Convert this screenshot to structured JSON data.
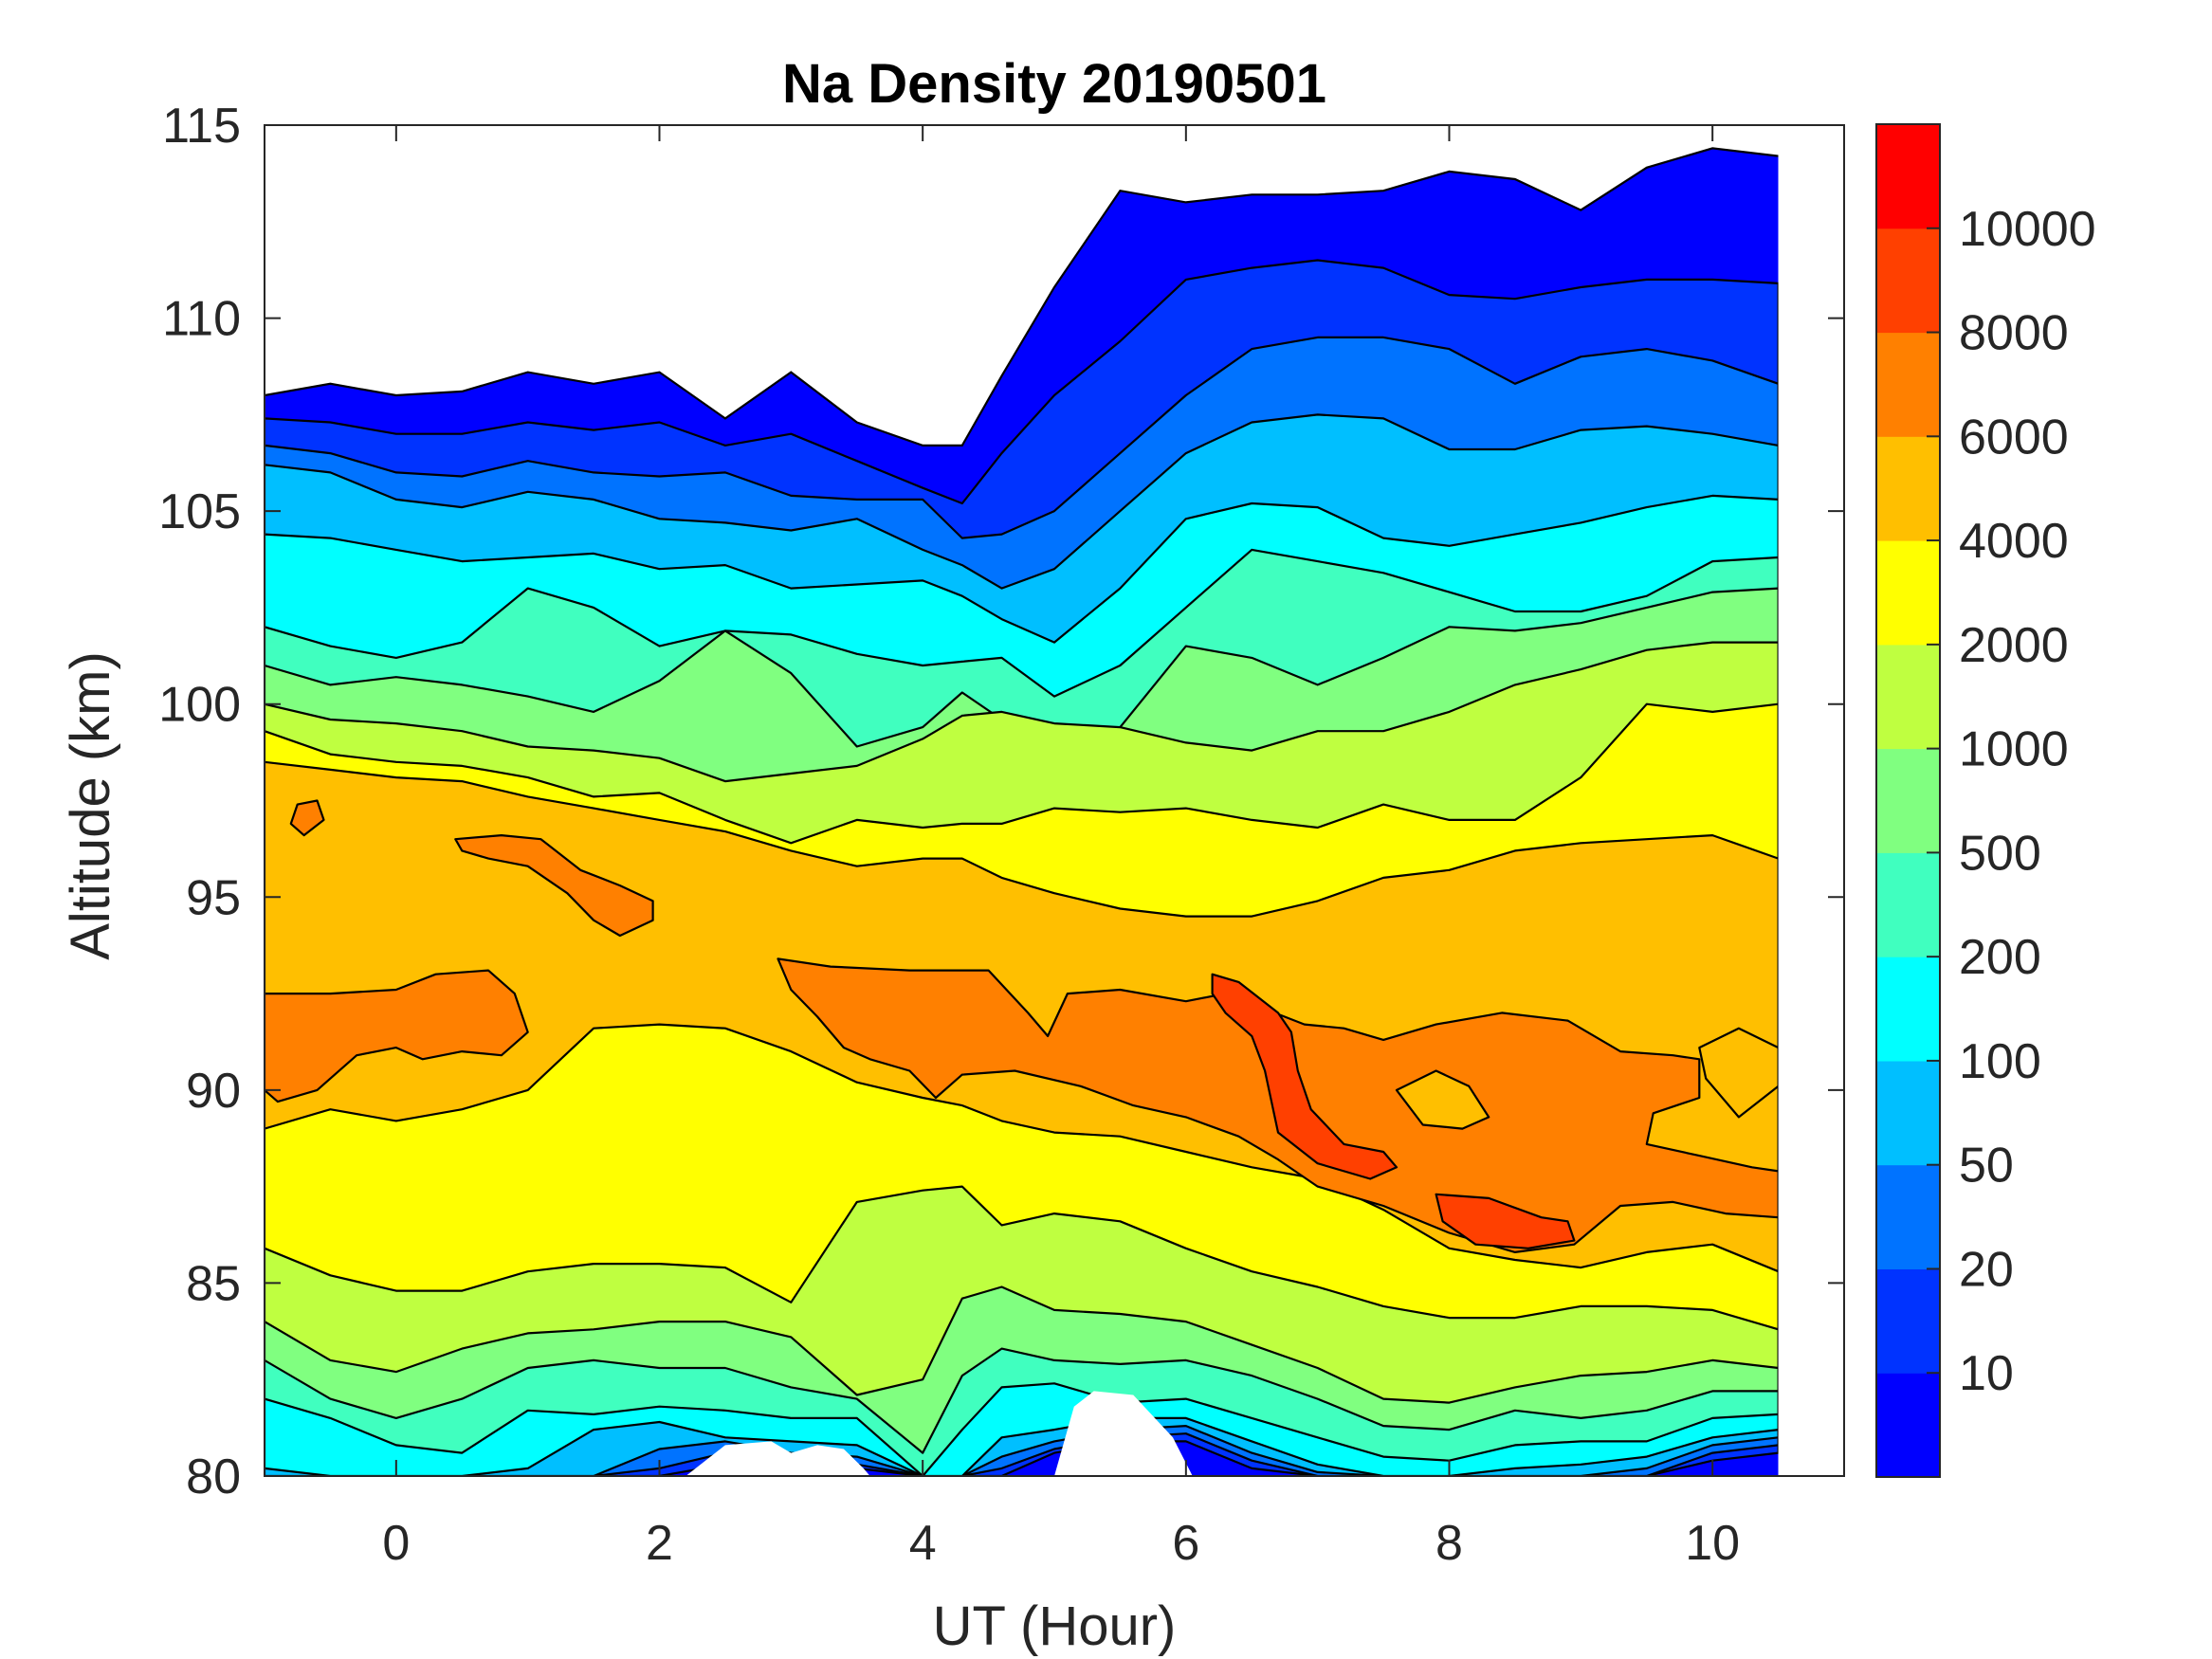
{
  "chart_data": {
    "type": "contourf",
    "title": "Na Density 20190501",
    "xlabel": "UT (Hour)",
    "ylabel": "Altitude (km)",
    "xlim": [
      -1,
      11
    ],
    "ylim": [
      80,
      115
    ],
    "xticks": [
      0,
      2,
      4,
      6,
      8,
      10
    ],
    "xtick_labels": [
      "0",
      "2",
      "4",
      "6",
      "8",
      "10"
    ],
    "yticks": [
      80,
      85,
      90,
      95,
      100,
      105,
      110,
      115
    ],
    "ytick_labels": [
      "80",
      "85",
      "90",
      "95",
      "100",
      "105",
      "110",
      "115"
    ],
    "grid": false,
    "colorbar": {
      "position": "right",
      "levels": [
        10,
        20,
        50,
        100,
        200,
        500,
        1000,
        2000,
        4000,
        6000,
        8000,
        10000
      ],
      "tick_labels": [
        "10",
        "20",
        "50",
        "100",
        "200",
        "500",
        "1000",
        "2000",
        "4000",
        "6000",
        "8000",
        "10000"
      ],
      "colors": [
        "#0000ff",
        "#0033ff",
        "#0073ff",
        "#00bfff",
        "#00ffff",
        "#40ffbf",
        "#80ff80",
        "#bfff40",
        "#ffff00",
        "#ffbf00",
        "#ff8000",
        "#ff4000",
        "#ff0000"
      ]
    },
    "ut": [
      -1,
      -0.5,
      0,
      0.5,
      1,
      1.5,
      2,
      2.5,
      3,
      3.5,
      4,
      4.3,
      4.6,
      5,
      5.5,
      6,
      6.5,
      7,
      7.5,
      8,
      8.5,
      9,
      9.5,
      10,
      10.5
    ],
    "bands": [
      {
        "level": 0,
        "top": [
          108.0,
          108.3,
          108.0,
          108.1,
          108.6,
          108.3,
          108.6,
          107.4,
          108.6,
          107.3,
          106.7,
          106.7,
          108.5,
          110.8,
          113.3,
          113.0,
          113.2,
          113.2,
          113.3,
          113.8,
          113.6,
          112.8,
          113.9,
          114.4,
          114.2
        ],
        "bottom": [
          80,
          80,
          80,
          80,
          80,
          80,
          80,
          80,
          80,
          80,
          80,
          80,
          80,
          80,
          80,
          80,
          80,
          80,
          80,
          80,
          80,
          80,
          80,
          80,
          80
        ]
      },
      {
        "level": 10,
        "top": [
          107.4,
          107.3,
          107.0,
          107.0,
          107.3,
          107.1,
          107.3,
          106.7,
          107.0,
          106.3,
          105.6,
          105.2,
          106.5,
          108.0,
          109.4,
          111.0,
          111.3,
          111.5,
          111.3,
          110.6,
          110.5,
          110.8,
          111.0,
          111.0,
          110.9
        ],
        "bottom": [
          80,
          80,
          80,
          80,
          80,
          80,
          80,
          80.3,
          80.4,
          80.2,
          80,
          80,
          80,
          80.6,
          80.9,
          80.9,
          80.2,
          80,
          80,
          80,
          80,
          80,
          80,
          80.4,
          80.6
        ]
      },
      {
        "level": 20,
        "top": [
          106.7,
          106.5,
          106.0,
          105.9,
          106.3,
          106.0,
          105.9,
          106.0,
          105.4,
          105.3,
          105.3,
          104.3,
          104.4,
          105.0,
          106.5,
          108.0,
          109.2,
          109.5,
          109.5,
          109.2,
          108.3,
          109.0,
          109.2,
          108.9,
          108.3
        ],
        "bottom": [
          80,
          80,
          80,
          80,
          80,
          80,
          80.2,
          80.6,
          80.5,
          80.3,
          80,
          80,
          80.2,
          80.7,
          81.0,
          81.1,
          80.4,
          80,
          80,
          80,
          80,
          80,
          80,
          80.6,
          80.8
        ]
      },
      {
        "level": 50,
        "top": [
          106.2,
          106.0,
          105.3,
          105.1,
          105.5,
          105.3,
          104.8,
          104.7,
          104.5,
          104.8,
          104.0,
          103.6,
          103.0,
          103.5,
          105.0,
          106.5,
          107.3,
          107.5,
          107.4,
          106.6,
          106.6,
          107.1,
          107.2,
          107.0,
          106.7
        ],
        "bottom": [
          80,
          80,
          80,
          80,
          80,
          80,
          80.7,
          80.9,
          80.6,
          80.5,
          80,
          80,
          80.5,
          80.9,
          81.2,
          81.3,
          80.6,
          80.1,
          80,
          80,
          80,
          80,
          80.2,
          80.8,
          81.0
        ]
      },
      {
        "level": 100,
        "top": [
          104.4,
          104.3,
          104.0,
          103.7,
          103.8,
          103.9,
          103.5,
          103.6,
          103.0,
          103.1,
          103.2,
          102.8,
          102.2,
          101.6,
          103.0,
          104.8,
          105.2,
          105.1,
          104.3,
          104.1,
          104.4,
          104.7,
          105.1,
          105.4,
          105.3
        ],
        "bottom": [
          80.2,
          80,
          80,
          80,
          80.2,
          81.2,
          81.4,
          81.0,
          80.9,
          80.8,
          80,
          80,
          81.0,
          81.2,
          81.5,
          81.5,
          80.9,
          80.3,
          80,
          80,
          80.2,
          80.3,
          80.5,
          81.0,
          81.2
        ]
      },
      {
        "level": 200,
        "top": [
          102.0,
          101.5,
          101.2,
          101.6,
          103.0,
          102.5,
          101.5,
          101.9,
          101.8,
          101.3,
          101.0,
          101.1,
          101.2,
          100.2,
          101.0,
          102.5,
          104.0,
          103.7,
          103.4,
          102.9,
          102.4,
          102.4,
          102.8,
          103.7,
          103.8
        ],
        "bottom": [
          82.0,
          81.5,
          80.8,
          80.6,
          81.7,
          81.6,
          81.8,
          81.7,
          81.5,
          81.5,
          80.0,
          81.2,
          82.3,
          82.4,
          81.9,
          82.0,
          81.5,
          81.0,
          80.5,
          80.4,
          80.8,
          80.9,
          80.9,
          81.5,
          81.6
        ]
      },
      {
        "level": 500,
        "top": [
          101.0,
          100.5,
          100.7,
          100.5,
          100.2,
          99.8,
          100.6,
          101.9,
          100.8,
          98.9,
          99.4,
          100.3,
          99.6,
          99.4,
          99.4,
          101.5,
          101.2,
          100.5,
          101.2,
          102.0,
          101.9,
          102.1,
          102.5,
          102.9,
          103.0
        ],
        "bottom": [
          83.0,
          82.0,
          81.5,
          82.0,
          82.8,
          83.0,
          82.8,
          82.8,
          82.3,
          82.0,
          80.6,
          82.6,
          83.3,
          83.0,
          82.9,
          83.0,
          82.6,
          82.0,
          81.3,
          81.2,
          81.7,
          81.5,
          81.7,
          82.2,
          82.2
        ]
      },
      {
        "level": 1000,
        "top": [
          100.0,
          99.6,
          99.5,
          99.3,
          98.9,
          98.8,
          98.6,
          98.0,
          98.2,
          98.4,
          99.1,
          99.7,
          99.8,
          99.5,
          99.4,
          99.0,
          98.8,
          99.3,
          99.3,
          99.8,
          100.5,
          100.9,
          101.4,
          101.6,
          101.6
        ],
        "bottom": [
          84.0,
          83.0,
          82.7,
          83.3,
          83.7,
          83.8,
          84.0,
          84.0,
          83.6,
          82.1,
          82.5,
          84.6,
          84.9,
          84.3,
          84.2,
          84.0,
          83.4,
          82.8,
          82.0,
          81.9,
          82.3,
          82.6,
          82.7,
          83.0,
          82.8
        ]
      },
      {
        "level": 2000,
        "top": [
          99.3,
          98.7,
          98.5,
          98.4,
          98.1,
          97.6,
          97.7,
          97.0,
          96.4,
          97.0,
          96.8,
          96.9,
          96.9,
          97.3,
          97.2,
          97.3,
          97.0,
          96.8,
          97.4,
          97.0,
          97.0,
          98.1,
          100.0,
          99.8,
          100.0
        ],
        "bottom": [
          85.9,
          85.2,
          84.8,
          84.8,
          85.3,
          85.5,
          85.5,
          85.4,
          84.5,
          87.1,
          87.4,
          87.5,
          86.5,
          86.8,
          86.6,
          85.9,
          85.3,
          84.9,
          84.4,
          84.1,
          84.1,
          84.4,
          84.4,
          84.3,
          83.8
        ]
      },
      {
        "level": 4000,
        "top": [
          98.5,
          98.3,
          98.1,
          98.0,
          97.6,
          97.3,
          97.0,
          96.7,
          96.2,
          95.8,
          96.0,
          96.0,
          95.5,
          95.1,
          94.7,
          94.5,
          94.5,
          94.9,
          95.5,
          95.7,
          96.2,
          96.4,
          96.5,
          96.6,
          96.0
        ],
        "bottom": [
          89.0,
          89.5,
          89.2,
          89.5,
          90.0,
          91.6,
          91.7,
          91.6,
          91.0,
          90.2,
          89.8,
          89.6,
          89.2,
          88.9,
          88.8,
          88.4,
          88.0,
          87.7,
          86.9,
          85.9,
          85.6,
          85.4,
          85.8,
          86.0,
          85.3
        ]
      }
    ],
    "patches": [
      {
        "level": 6000,
        "points": [
          [
            -1,
            92.5
          ],
          [
            -0.5,
            92.5
          ],
          [
            0,
            92.6
          ],
          [
            0.3,
            93.0
          ],
          [
            0.7,
            93.1
          ],
          [
            0.9,
            92.5
          ],
          [
            1.0,
            91.5
          ],
          [
            0.8,
            90.9
          ],
          [
            0.5,
            91.0
          ],
          [
            0.2,
            90.8
          ],
          [
            0.0,
            91.1
          ],
          [
            -0.3,
            90.9
          ],
          [
            -0.6,
            90.0
          ],
          [
            -0.9,
            89.7
          ],
          [
            -1,
            90.0
          ]
        ]
      },
      {
        "level": 6000,
        "points": [
          [
            -0.75,
            97.4
          ],
          [
            -0.6,
            97.5
          ],
          [
            -0.55,
            97.0
          ],
          [
            -0.7,
            96.6
          ],
          [
            -0.8,
            96.9
          ]
        ]
      },
      {
        "level": 6000,
        "points": [
          [
            0.45,
            96.5
          ],
          [
            0.8,
            96.6
          ],
          [
            1.1,
            96.5
          ],
          [
            1.4,
            95.7
          ],
          [
            1.7,
            95.3
          ],
          [
            1.95,
            94.9
          ],
          [
            1.95,
            94.4
          ],
          [
            1.7,
            94.0
          ],
          [
            1.5,
            94.4
          ],
          [
            1.3,
            95.1
          ],
          [
            1.0,
            95.8
          ],
          [
            0.7,
            96.0
          ],
          [
            0.5,
            96.2
          ]
        ]
      },
      {
        "level": 6000,
        "points": [
          [
            2.9,
            93.4
          ],
          [
            3.3,
            93.2
          ],
          [
            3.9,
            93.1
          ],
          [
            4.5,
            93.1
          ],
          [
            4.8,
            92.0
          ],
          [
            4.95,
            91.4
          ],
          [
            5.1,
            92.5
          ],
          [
            5.5,
            92.6
          ],
          [
            6.0,
            92.3
          ],
          [
            6.3,
            92.5
          ],
          [
            6.6,
            92.1
          ],
          [
            6.9,
            91.7
          ],
          [
            7.2,
            91.6
          ],
          [
            7.5,
            91.3
          ],
          [
            7.9,
            91.7
          ],
          [
            8.4,
            92.0
          ],
          [
            8.9,
            91.8
          ],
          [
            9.3,
            91.0
          ],
          [
            9.7,
            90.9
          ],
          [
            9.9,
            90.8
          ],
          [
            9.9,
            89.8
          ],
          [
            9.55,
            89.4
          ],
          [
            9.5,
            88.6
          ],
          [
            9.9,
            88.3
          ],
          [
            10.3,
            88.0
          ],
          [
            10.5,
            87.9
          ],
          [
            10.5,
            86.7
          ],
          [
            10.1,
            86.8
          ],
          [
            9.7,
            87.1
          ],
          [
            9.3,
            87.0
          ],
          [
            8.95,
            86.0
          ],
          [
            8.5,
            85.8
          ],
          [
            8.0,
            86.3
          ],
          [
            7.5,
            87.0
          ],
          [
            7.0,
            87.5
          ],
          [
            6.7,
            88.2
          ],
          [
            6.4,
            88.8
          ],
          [
            6.0,
            89.3
          ],
          [
            5.6,
            89.6
          ],
          [
            5.2,
            90.1
          ],
          [
            4.7,
            90.5
          ],
          [
            4.3,
            90.4
          ],
          [
            4.1,
            89.8
          ],
          [
            3.9,
            90.5
          ],
          [
            3.6,
            90.8
          ],
          [
            3.4,
            91.1
          ],
          [
            3.2,
            91.9
          ],
          [
            3.0,
            92.6
          ]
        ]
      },
      {
        "level": 4000,
        "points": [
          [
            7.6,
            90.0
          ],
          [
            7.9,
            90.5
          ],
          [
            8.15,
            90.1
          ],
          [
            8.3,
            89.3
          ],
          [
            8.1,
            89.0
          ],
          [
            7.8,
            89.1
          ]
        ]
      },
      {
        "level": 4000,
        "points": [
          [
            9.9,
            91.1
          ],
          [
            10.2,
            91.6
          ],
          [
            10.5,
            91.1
          ],
          [
            10.5,
            90.1
          ],
          [
            10.2,
            89.3
          ],
          [
            9.95,
            90.3
          ]
        ]
      },
      {
        "level": 8000,
        "points": [
          [
            6.2,
            93.0
          ],
          [
            6.4,
            92.8
          ],
          [
            6.7,
            92.0
          ],
          [
            6.8,
            91.5
          ],
          [
            6.85,
            90.5
          ],
          [
            6.95,
            89.5
          ],
          [
            7.2,
            88.6
          ],
          [
            7.5,
            88.4
          ],
          [
            7.6,
            88.0
          ],
          [
            7.4,
            87.7
          ],
          [
            7.0,
            88.1
          ],
          [
            6.7,
            88.9
          ],
          [
            6.6,
            90.5
          ],
          [
            6.5,
            91.4
          ],
          [
            6.3,
            92.0
          ],
          [
            6.2,
            92.5
          ]
        ]
      },
      {
        "level": 8000,
        "points": [
          [
            7.9,
            87.3
          ],
          [
            8.3,
            87.2
          ],
          [
            8.7,
            86.7
          ],
          [
            8.9,
            86.6
          ],
          [
            8.95,
            86.1
          ],
          [
            8.6,
            85.9
          ],
          [
            8.2,
            86.0
          ],
          [
            7.95,
            86.6
          ]
        ]
      }
    ],
    "gaps": [
      [
        [
          2.2,
          80
        ],
        [
          2.5,
          80.8
        ],
        [
          2.85,
          80.9
        ],
        [
          3.0,
          80.6
        ],
        [
          3.2,
          80.8
        ],
        [
          3.4,
          80.7
        ],
        [
          3.55,
          80.2
        ],
        [
          3.6,
          80
        ]
      ],
      [
        [
          5.0,
          80
        ],
        [
          5.15,
          81.8
        ],
        [
          5.3,
          82.2
        ],
        [
          5.6,
          82.1
        ],
        [
          5.9,
          81.0
        ],
        [
          6.05,
          80
        ]
      ],
      [
        [
          -1,
          80
        ],
        [
          -1,
          80
        ]
      ]
    ]
  }
}
